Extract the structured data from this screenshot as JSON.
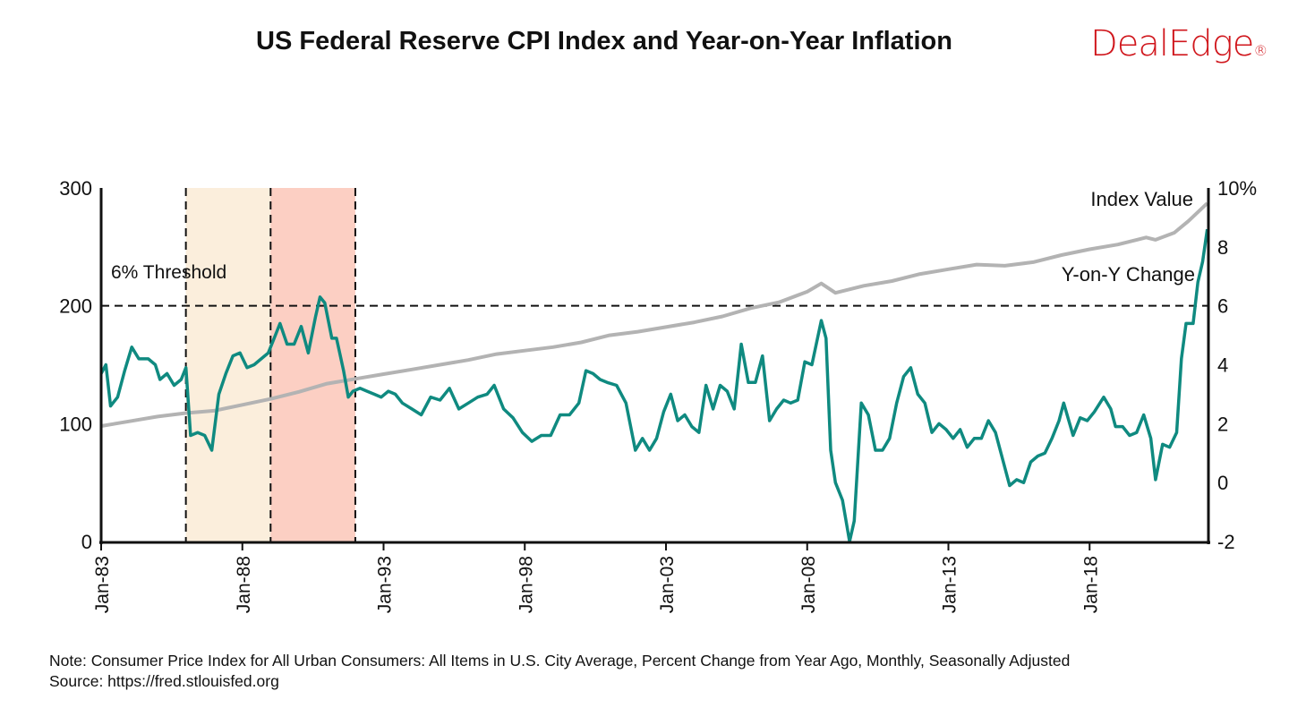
{
  "title": "US Federal Reserve CPI Index and Year-on-Year Inflation",
  "logo": {
    "text": "DealEdge",
    "mark": "®",
    "color": "#d0161c"
  },
  "note": "Note: Consumer Price Index for All Urban Consumers: All Items in U.S. City Average, Percent Change from Year Ago, Monthly, Seasonally Adjusted",
  "source": "Source: https://fred.stlouisfed.org",
  "chart_data": {
    "type": "line",
    "x_ticks": [
      "Jan-83",
      "Jan-88",
      "Jan-93",
      "Jan-98",
      "Jan-03",
      "Jan-08",
      "Jan-13",
      "Jan-18"
    ],
    "left_axis": {
      "ylim": [
        0,
        300
      ],
      "ticks": [
        "0",
        "100",
        "200",
        "300"
      ]
    },
    "right_axis": {
      "ylim": [
        -2,
        10
      ],
      "ticks": [
        "-2",
        "0",
        "2",
        "4",
        "6",
        "8",
        "10%"
      ]
    },
    "threshold": {
      "label": "6% Threshold",
      "value": 6
    },
    "shaded_periods": [
      {
        "start": "1986-01",
        "end": "1989-01",
        "color": "#fbeedc"
      },
      {
        "start": "1989-01",
        "end": "1992-01",
        "color": "#fccfc3"
      }
    ],
    "grid": false,
    "series": [
      {
        "name": "Index Value",
        "axis": "left",
        "color": "#b3b3b3",
        "points": [
          [
            "1983-01",
            98
          ],
          [
            "1984-01",
            102
          ],
          [
            "1985-01",
            106
          ],
          [
            "1986-01",
            109
          ],
          [
            "1987-01",
            111
          ],
          [
            "1988-01",
            116
          ],
          [
            "1989-01",
            121
          ],
          [
            "1990-01",
            127
          ],
          [
            "1991-01",
            134
          ],
          [
            "1992-01",
            138
          ],
          [
            "1993-01",
            142
          ],
          [
            "1994-01",
            146
          ],
          [
            "1995-01",
            150
          ],
          [
            "1996-01",
            154
          ],
          [
            "1997-01",
            159
          ],
          [
            "1998-01",
            162
          ],
          [
            "1999-01",
            165
          ],
          [
            "2000-01",
            169
          ],
          [
            "2001-01",
            175
          ],
          [
            "2002-01",
            178
          ],
          [
            "2003-01",
            182
          ],
          [
            "2004-01",
            186
          ],
          [
            "2005-01",
            191
          ],
          [
            "2006-01",
            198
          ],
          [
            "2007-01",
            203
          ],
          [
            "2008-01",
            212
          ],
          [
            "2008-07",
            219
          ],
          [
            "2009-01",
            211
          ],
          [
            "2010-01",
            217
          ],
          [
            "2011-01",
            221
          ],
          [
            "2012-01",
            227
          ],
          [
            "2013-01",
            231
          ],
          [
            "2014-01",
            235
          ],
          [
            "2015-01",
            234
          ],
          [
            "2016-01",
            237
          ],
          [
            "2017-01",
            243
          ],
          [
            "2018-01",
            248
          ],
          [
            "2019-01",
            252
          ],
          [
            "2020-01",
            258
          ],
          [
            "2020-05",
            256
          ],
          [
            "2021-01",
            262
          ],
          [
            "2021-07",
            272
          ],
          [
            "2022-03",
            287
          ]
        ]
      },
      {
        "name": "Y-on-Y Change",
        "axis": "right",
        "color": "#0f8a80",
        "points": [
          [
            "1983-01",
            3.7
          ],
          [
            "1983-03",
            4.0
          ],
          [
            "1983-05",
            2.6
          ],
          [
            "1983-08",
            2.9
          ],
          [
            "1983-11",
            3.8
          ],
          [
            "1984-02",
            4.6
          ],
          [
            "1984-05",
            4.2
          ],
          [
            "1984-09",
            4.2
          ],
          [
            "1984-12",
            4.0
          ],
          [
            "1985-02",
            3.5
          ],
          [
            "1985-05",
            3.7
          ],
          [
            "1985-08",
            3.3
          ],
          [
            "1985-11",
            3.5
          ],
          [
            "1986-01",
            3.9
          ],
          [
            "1986-03",
            1.6
          ],
          [
            "1986-06",
            1.7
          ],
          [
            "1986-09",
            1.6
          ],
          [
            "1986-12",
            1.1
          ],
          [
            "1987-03",
            3.0
          ],
          [
            "1987-06",
            3.7
          ],
          [
            "1987-09",
            4.3
          ],
          [
            "1987-12",
            4.4
          ],
          [
            "1988-03",
            3.9
          ],
          [
            "1988-06",
            4.0
          ],
          [
            "1988-09",
            4.2
          ],
          [
            "1988-12",
            4.4
          ],
          [
            "1989-03",
            5.0
          ],
          [
            "1989-05",
            5.4
          ],
          [
            "1989-08",
            4.7
          ],
          [
            "1989-11",
            4.7
          ],
          [
            "1990-02",
            5.3
          ],
          [
            "1990-05",
            4.4
          ],
          [
            "1990-08",
            5.6
          ],
          [
            "1990-10",
            6.3
          ],
          [
            "1990-12",
            6.1
          ],
          [
            "1991-03",
            4.9
          ],
          [
            "1991-05",
            4.9
          ],
          [
            "1991-08",
            3.8
          ],
          [
            "1991-10",
            2.9
          ],
          [
            "1991-12",
            3.1
          ],
          [
            "1992-03",
            3.2
          ],
          [
            "1992-06",
            3.1
          ],
          [
            "1992-09",
            3.0
          ],
          [
            "1992-12",
            2.9
          ],
          [
            "1993-03",
            3.1
          ],
          [
            "1993-06",
            3.0
          ],
          [
            "1993-09",
            2.7
          ],
          [
            "1994-01",
            2.5
          ],
          [
            "1994-05",
            2.3
          ],
          [
            "1994-09",
            2.9
          ],
          [
            "1995-01",
            2.8
          ],
          [
            "1995-05",
            3.2
          ],
          [
            "1995-09",
            2.5
          ],
          [
            "1996-01",
            2.7
          ],
          [
            "1996-05",
            2.9
          ],
          [
            "1996-09",
            3.0
          ],
          [
            "1996-12",
            3.3
          ],
          [
            "1997-04",
            2.5
          ],
          [
            "1997-08",
            2.2
          ],
          [
            "1997-12",
            1.7
          ],
          [
            "1998-04",
            1.4
          ],
          [
            "1998-08",
            1.6
          ],
          [
            "1998-12",
            1.6
          ],
          [
            "1999-04",
            2.3
          ],
          [
            "1999-08",
            2.3
          ],
          [
            "1999-12",
            2.7
          ],
          [
            "2000-03",
            3.8
          ],
          [
            "2000-06",
            3.7
          ],
          [
            "2000-09",
            3.5
          ],
          [
            "2000-12",
            3.4
          ],
          [
            "2001-04",
            3.3
          ],
          [
            "2001-08",
            2.7
          ],
          [
            "2001-12",
            1.1
          ],
          [
            "2002-03",
            1.5
          ],
          [
            "2002-06",
            1.1
          ],
          [
            "2002-09",
            1.5
          ],
          [
            "2002-12",
            2.4
          ],
          [
            "2003-03",
            3.0
          ],
          [
            "2003-06",
            2.1
          ],
          [
            "2003-09",
            2.3
          ],
          [
            "2003-12",
            1.9
          ],
          [
            "2004-03",
            1.7
          ],
          [
            "2004-06",
            3.3
          ],
          [
            "2004-09",
            2.5
          ],
          [
            "2004-12",
            3.3
          ],
          [
            "2005-03",
            3.1
          ],
          [
            "2005-06",
            2.5
          ],
          [
            "2005-09",
            4.7
          ],
          [
            "2005-12",
            3.4
          ],
          [
            "2006-03",
            3.4
          ],
          [
            "2006-06",
            4.3
          ],
          [
            "2006-09",
            2.1
          ],
          [
            "2006-12",
            2.5
          ],
          [
            "2007-03",
            2.8
          ],
          [
            "2007-06",
            2.7
          ],
          [
            "2007-09",
            2.8
          ],
          [
            "2007-12",
            4.1
          ],
          [
            "2008-03",
            4.0
          ],
          [
            "2008-07",
            5.5
          ],
          [
            "2008-09",
            4.9
          ],
          [
            "2008-11",
            1.1
          ],
          [
            "2009-01",
            0.0
          ],
          [
            "2009-04",
            -0.6
          ],
          [
            "2009-07",
            -2.0
          ],
          [
            "2009-09",
            -1.3
          ],
          [
            "2009-12",
            2.7
          ],
          [
            "2010-03",
            2.3
          ],
          [
            "2010-06",
            1.1
          ],
          [
            "2010-09",
            1.1
          ],
          [
            "2010-12",
            1.5
          ],
          [
            "2011-03",
            2.7
          ],
          [
            "2011-06",
            3.6
          ],
          [
            "2011-09",
            3.9
          ],
          [
            "2011-12",
            3.0
          ],
          [
            "2012-03",
            2.7
          ],
          [
            "2012-06",
            1.7
          ],
          [
            "2012-09",
            2.0
          ],
          [
            "2012-12",
            1.8
          ],
          [
            "2013-03",
            1.5
          ],
          [
            "2013-06",
            1.8
          ],
          [
            "2013-09",
            1.2
          ],
          [
            "2013-12",
            1.5
          ],
          [
            "2014-03",
            1.5
          ],
          [
            "2014-06",
            2.1
          ],
          [
            "2014-09",
            1.7
          ],
          [
            "2014-12",
            0.8
          ],
          [
            "2015-03",
            -0.1
          ],
          [
            "2015-06",
            0.1
          ],
          [
            "2015-09",
            0.0
          ],
          [
            "2015-12",
            0.7
          ],
          [
            "2016-03",
            0.9
          ],
          [
            "2016-06",
            1.0
          ],
          [
            "2016-09",
            1.5
          ],
          [
            "2016-12",
            2.1
          ],
          [
            "2017-02",
            2.7
          ],
          [
            "2017-06",
            1.6
          ],
          [
            "2017-09",
            2.2
          ],
          [
            "2017-12",
            2.1
          ],
          [
            "2018-03",
            2.4
          ],
          [
            "2018-07",
            2.9
          ],
          [
            "2018-10",
            2.5
          ],
          [
            "2018-12",
            1.9
          ],
          [
            "2019-03",
            1.9
          ],
          [
            "2019-06",
            1.6
          ],
          [
            "2019-09",
            1.7
          ],
          [
            "2019-12",
            2.3
          ],
          [
            "2020-03",
            1.5
          ],
          [
            "2020-05",
            0.1
          ],
          [
            "2020-08",
            1.3
          ],
          [
            "2020-11",
            1.2
          ],
          [
            "2021-02",
            1.7
          ],
          [
            "2021-04",
            4.2
          ],
          [
            "2021-06",
            5.4
          ],
          [
            "2021-09",
            5.4
          ],
          [
            "2021-11",
            6.8
          ],
          [
            "2022-01",
            7.5
          ],
          [
            "2022-03",
            8.6
          ]
        ]
      }
    ]
  }
}
